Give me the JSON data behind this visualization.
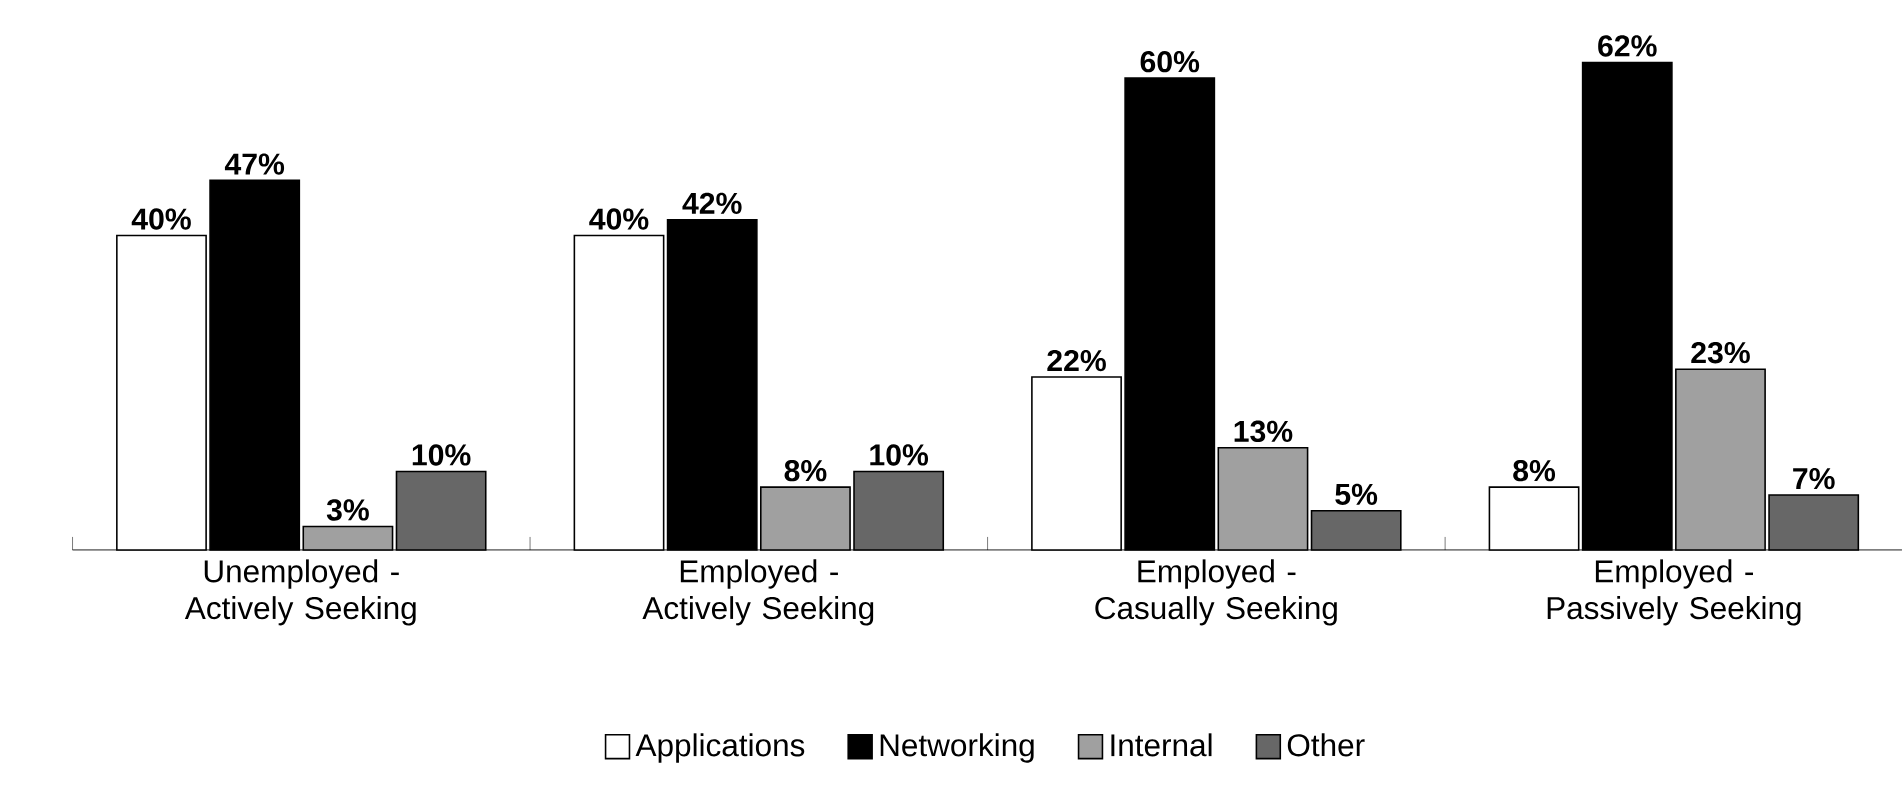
{
  "chart_data": {
    "type": "bar",
    "categories": [
      "Unemployed - Actively Seeking",
      "Employed - Actively Seeking",
      "Employed - Casually Seeking",
      "Employed - Passively Seeking"
    ],
    "series": [
      {
        "name": "Applications",
        "color": "#ffffff",
        "values": [
          40,
          40,
          22,
          8
        ],
        "value_labels": [
          "40%",
          "40%",
          "22%",
          "8%"
        ]
      },
      {
        "name": "Networking",
        "color": "#000000",
        "values": [
          47,
          42,
          60,
          62
        ],
        "value_labels": [
          "47%",
          "42%",
          "60%",
          "62%"
        ]
      },
      {
        "name": "Internal",
        "color": "#a0a0a0",
        "values": [
          3,
          8,
          13,
          23
        ],
        "value_labels": [
          "3%",
          "8%",
          "13%",
          "23%"
        ]
      },
      {
        "name": "Other",
        "color": "#676767",
        "values": [
          10,
          10,
          5,
          7
        ],
        "value_labels": [
          "10%",
          "10%",
          "5%",
          "7%"
        ]
      }
    ],
    "legend": "bottom"
  }
}
